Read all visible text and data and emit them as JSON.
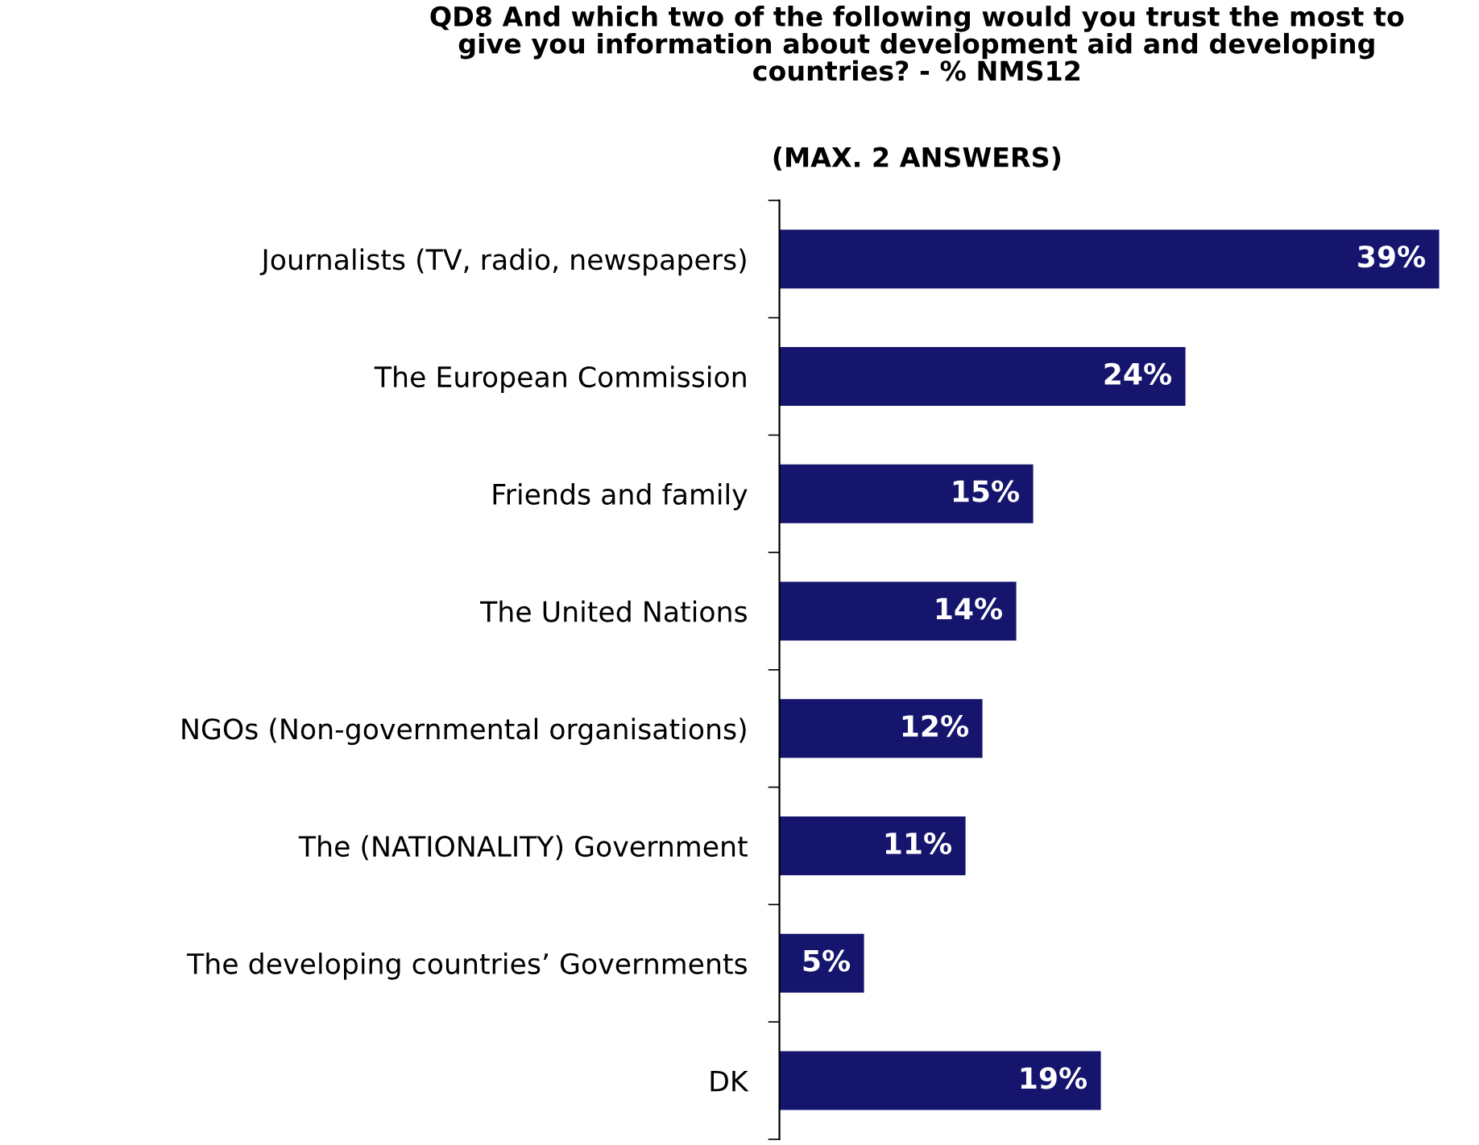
{
  "chart_data": {
    "type": "bar",
    "orientation": "horizontal",
    "title": "QD8 And which two of the following would you trust the most to\ngive you information about development aid and developing\ncountries? - % NMS12",
    "subtitle": "(MAX. 2 ANSWERS)",
    "categories": [
      "Journalists (TV, radio, newspapers)",
      "The European Commission",
      "Friends and family",
      "The United Nations",
      "NGOs (Non-governmental organisations)",
      "The (NATIONALITY) Government",
      "The developing countries’ Governments",
      "DK"
    ],
    "values": [
      39,
      24,
      15,
      14,
      12,
      11,
      5,
      19
    ],
    "value_labels": [
      "39%",
      "24%",
      "15%",
      "14%",
      "12%",
      "11%",
      "5%",
      "19%"
    ],
    "color": "#15156e",
    "grid": false,
    "legend": false
  }
}
